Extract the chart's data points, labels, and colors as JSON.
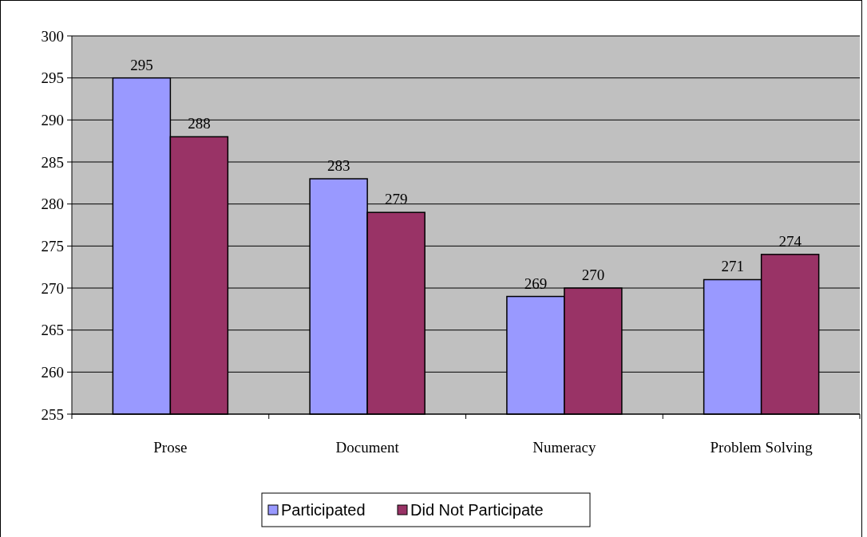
{
  "chart_data": {
    "type": "bar",
    "categories": [
      "Prose",
      "Document",
      "Numeracy",
      "Problem Solving"
    ],
    "series": [
      {
        "name": "Participated",
        "color": "#9999ff",
        "values": [
          295,
          283,
          269,
          271
        ]
      },
      {
        "name": "Did Not Participate",
        "color": "#993366",
        "values": [
          288,
          279,
          270,
          274
        ]
      }
    ],
    "ylim": [
      255,
      300
    ],
    "yticks": [
      255,
      260,
      265,
      270,
      275,
      280,
      285,
      290,
      295,
      300
    ],
    "grid": "y",
    "data_labels": true,
    "legend": "bottom"
  }
}
